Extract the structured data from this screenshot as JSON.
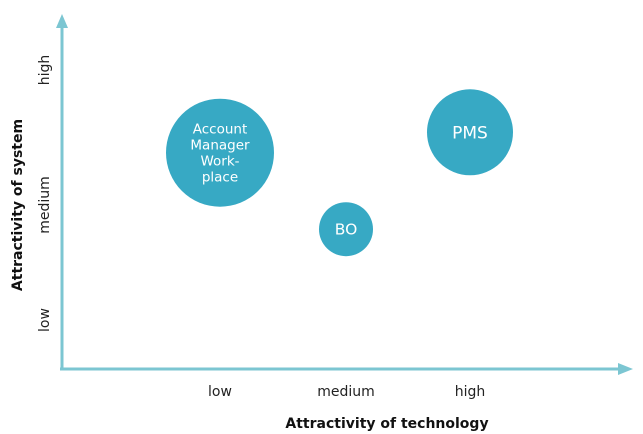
{
  "chart_data": {
    "type": "scatter",
    "title": "",
    "xlabel": "Attractivity of technology",
    "ylabel": "Attractivity of system",
    "x_categories": [
      "low",
      "medium",
      "high"
    ],
    "y_categories": [
      "low",
      "medium",
      "high"
    ],
    "grid": false,
    "colors": {
      "axis": "#7cc6d2",
      "bubble": "#37a9c4",
      "bubble_text": "#ffffff"
    },
    "points": [
      {
        "label": "Account Manager Work-place",
        "label_lines": [
          "Account",
          "Manager",
          "Work-",
          "place"
        ],
        "x": "low",
        "y": 2.65,
        "size": "large"
      },
      {
        "label": "BO",
        "label_lines": [
          "BO"
        ],
        "x": "medium",
        "y": 1.9,
        "size": "small"
      },
      {
        "label": "PMS",
        "label_lines": [
          "PMS"
        ],
        "x": "high",
        "y": 2.85,
        "size": "medium"
      }
    ]
  }
}
